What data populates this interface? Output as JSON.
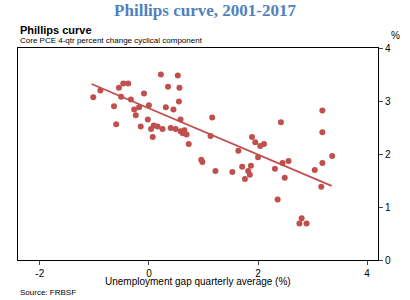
{
  "chart_data": {
    "type": "scatter",
    "title": "Phillips curve, 2001-2017",
    "subtitle": "Phillips curve",
    "ylabel": "Core PCE 4-qtr percent change cyclical component",
    "yunit": "%",
    "xlabel": "Unemployment gap quarterly average (%)",
    "source": "Source: FRBSF",
    "xlim": [
      -2.4,
      4.2
    ],
    "xticks": [
      -2,
      0,
      2,
      4
    ],
    "ylim": [
      0,
      4
    ],
    "yticks": [
      0,
      1,
      2,
      3,
      4
    ],
    "grid": false,
    "series": [
      {
        "type": "scatter",
        "color": "#c0504d",
        "marker": "circle",
        "x": [
          -1.02,
          -0.89,
          -0.64,
          -0.6,
          -0.55,
          -0.47,
          -0.51,
          -0.38,
          -0.33,
          -0.27,
          -0.24,
          -0.18,
          -0.15,
          -0.09,
          0,
          -0.02,
          0.04,
          0.07,
          0.09,
          0.16,
          0.22,
          0.25,
          0.31,
          0.35,
          0.4,
          0.45,
          0.49,
          0.53,
          0.55,
          0.56,
          0.58,
          0.62,
          0.65,
          0.69,
          0.73,
          0.58,
          0.96,
          0.98,
          1.13,
          1.16,
          1.22,
          1.53,
          1.64,
          1.71,
          1.76,
          1.82,
          1.85,
          1.87,
          1.89,
          1.95,
          2.0,
          2.04,
          2.11,
          2.31,
          2.36,
          2.42,
          2.45,
          2.49,
          2.56,
          2.76,
          2.8,
          2.89,
          3.04,
          3.16,
          3.18,
          3.18,
          3.18,
          3.36
        ],
        "values": [
          3.07,
          3.2,
          2.9,
          2.56,
          3.25,
          3.33,
          3.08,
          3.33,
          3.03,
          2.84,
          2.73,
          2.88,
          2.52,
          3.14,
          2.92,
          2.65,
          2.47,
          2.32,
          2.54,
          2.52,
          3.5,
          2.47,
          2.88,
          3.27,
          2.49,
          2.84,
          2.47,
          3.48,
          2.99,
          3.25,
          2.43,
          2.39,
          2.45,
          2.37,
          2.19,
          2.65,
          1.89,
          1.85,
          2.34,
          2.69,
          1.68,
          1.66,
          2.06,
          1.76,
          1.53,
          1.68,
          1.61,
          1.78,
          2.32,
          2.22,
          1.94,
          2.15,
          2.19,
          1.72,
          1.14,
          2.6,
          1.83,
          1.55,
          1.87,
          0.69,
          0.79,
          0.69,
          1.7,
          1.38,
          1.83,
          2.82,
          2.41,
          1.96
        ]
      },
      {
        "type": "line",
        "color": "#c0504d",
        "line_style": "solid",
        "x": [
          -1.05,
          3.35
        ],
        "values": [
          3.32,
          1.4
        ]
      }
    ]
  }
}
